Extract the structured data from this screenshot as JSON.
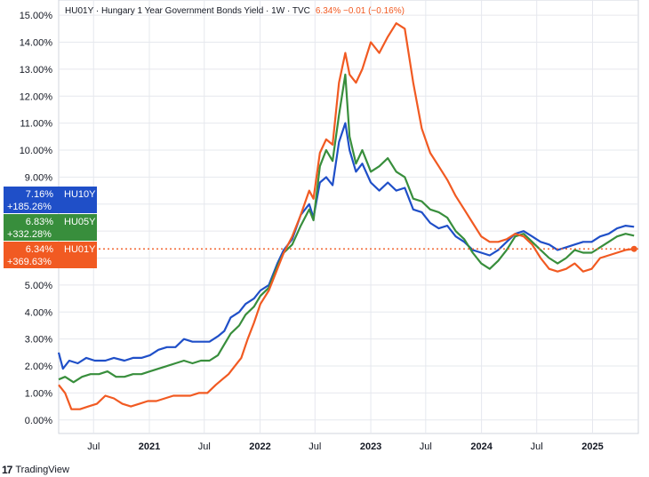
{
  "header": {
    "title": "HU01Y · Hungary 1 Year Government Bonds Yield · 1W · TVC",
    "values": "6.34%  −0.01 (−0.16%)"
  },
  "branding": {
    "glyph": "17",
    "label": "TradingView"
  },
  "colors": {
    "hu10y": "#1f4fc8",
    "hu05y": "#388e3c",
    "hu01y": "#f15a22"
  },
  "chart_data": {
    "type": "line",
    "ylim": [
      -0.5,
      15.3
    ],
    "ytick_labels": [
      "0.00%",
      "1.00%",
      "2.00%",
      "3.00%",
      "4.00%",
      "5.00%",
      "6.00%",
      "7.00%",
      "8.00%",
      "9.00%",
      "10.00%",
      "11.00%",
      "12.00%",
      "13.00%",
      "14.00%",
      "15.00%"
    ],
    "ytick_values": [
      0,
      1,
      2,
      3,
      4,
      5,
      6,
      7,
      8,
      9,
      10,
      11,
      12,
      13,
      14,
      15
    ],
    "xlim": [
      "2020-03-08",
      "2025-06-01"
    ],
    "xticks": [
      {
        "label": "Jul",
        "date": "2020-07-01",
        "year": false
      },
      {
        "label": "2021",
        "date": "2021-01-01",
        "year": true
      },
      {
        "label": "Jul",
        "date": "2021-07-01",
        "year": false
      },
      {
        "label": "2022",
        "date": "2022-01-01",
        "year": true
      },
      {
        "label": "Jul",
        "date": "2022-07-01",
        "year": false
      },
      {
        "label": "2023",
        "date": "2023-01-01",
        "year": true
      },
      {
        "label": "Jul",
        "date": "2023-07-01",
        "year": false
      },
      {
        "label": "2024",
        "date": "2024-01-01",
        "year": true
      },
      {
        "label": "Jul",
        "date": "2024-07-01",
        "year": false
      },
      {
        "label": "2025",
        "date": "2025-01-01",
        "year": true
      }
    ],
    "grid": true,
    "series": [
      {
        "name": "HU10Y",
        "color": "#1f4fc8",
        "last_value": "7.16%",
        "change": "+185.26%",
        "last": 7.16,
        "points": [
          [
            "2020-03-08",
            2.5
          ],
          [
            "2020-03-22",
            1.9
          ],
          [
            "2020-04-12",
            2.2
          ],
          [
            "2020-05-10",
            2.1
          ],
          [
            "2020-06-07",
            2.3
          ],
          [
            "2020-07-05",
            2.2
          ],
          [
            "2020-08-09",
            2.2
          ],
          [
            "2020-09-06",
            2.3
          ],
          [
            "2020-10-11",
            2.2
          ],
          [
            "2020-11-08",
            2.3
          ],
          [
            "2020-12-06",
            2.3
          ],
          [
            "2021-01-03",
            2.4
          ],
          [
            "2021-01-31",
            2.6
          ],
          [
            "2021-02-28",
            2.7
          ],
          [
            "2021-03-28",
            2.7
          ],
          [
            "2021-04-25",
            3.0
          ],
          [
            "2021-05-23",
            2.9
          ],
          [
            "2021-06-20",
            2.9
          ],
          [
            "2021-07-18",
            2.9
          ],
          [
            "2021-08-15",
            3.1
          ],
          [
            "2021-09-05",
            3.3
          ],
          [
            "2021-09-26",
            3.8
          ],
          [
            "2021-10-24",
            4.0
          ],
          [
            "2021-11-14",
            4.3
          ],
          [
            "2021-12-12",
            4.5
          ],
          [
            "2022-01-02",
            4.8
          ],
          [
            "2022-01-30",
            5.0
          ],
          [
            "2022-02-27",
            5.8
          ],
          [
            "2022-03-20",
            6.3
          ],
          [
            "2022-04-17",
            6.7
          ],
          [
            "2022-05-15",
            7.6
          ],
          [
            "2022-06-12",
            8.0
          ],
          [
            "2022-06-26",
            7.5
          ],
          [
            "2022-07-17",
            8.8
          ],
          [
            "2022-08-07",
            9.0
          ],
          [
            "2022-08-28",
            8.7
          ],
          [
            "2022-09-18",
            10.3
          ],
          [
            "2022-10-09",
            11.0
          ],
          [
            "2022-10-23",
            10.0
          ],
          [
            "2022-11-13",
            9.2
          ],
          [
            "2022-12-04",
            9.5
          ],
          [
            "2023-01-01",
            8.8
          ],
          [
            "2023-01-29",
            8.5
          ],
          [
            "2023-02-26",
            8.8
          ],
          [
            "2023-03-26",
            8.5
          ],
          [
            "2023-04-23",
            8.6
          ],
          [
            "2023-05-21",
            7.8
          ],
          [
            "2023-06-18",
            7.7
          ],
          [
            "2023-07-16",
            7.3
          ],
          [
            "2023-08-13",
            7.1
          ],
          [
            "2023-09-10",
            7.2
          ],
          [
            "2023-10-08",
            6.8
          ],
          [
            "2023-11-05",
            6.6
          ],
          [
            "2023-12-03",
            6.3
          ],
          [
            "2023-12-31",
            6.2
          ],
          [
            "2024-01-28",
            6.1
          ],
          [
            "2024-02-25",
            6.3
          ],
          [
            "2024-03-24",
            6.6
          ],
          [
            "2024-04-21",
            6.9
          ],
          [
            "2024-05-19",
            7.0
          ],
          [
            "2024-06-16",
            6.8
          ],
          [
            "2024-07-14",
            6.6
          ],
          [
            "2024-08-11",
            6.5
          ],
          [
            "2024-09-08",
            6.3
          ],
          [
            "2024-10-06",
            6.4
          ],
          [
            "2024-11-03",
            6.5
          ],
          [
            "2024-12-01",
            6.6
          ],
          [
            "2024-12-29",
            6.6
          ],
          [
            "2025-01-26",
            6.8
          ],
          [
            "2025-02-23",
            6.9
          ],
          [
            "2025-03-23",
            7.1
          ],
          [
            "2025-04-20",
            7.2
          ],
          [
            "2025-05-18",
            7.16
          ]
        ]
      },
      {
        "name": "HU05Y",
        "color": "#388e3c",
        "last_value": "6.83%",
        "change": "+332.28%",
        "last": 6.83,
        "points": [
          [
            "2020-03-08",
            1.5
          ],
          [
            "2020-03-29",
            1.6
          ],
          [
            "2020-04-26",
            1.4
          ],
          [
            "2020-05-24",
            1.6
          ],
          [
            "2020-06-21",
            1.7
          ],
          [
            "2020-07-19",
            1.7
          ],
          [
            "2020-08-16",
            1.8
          ],
          [
            "2020-09-13",
            1.6
          ],
          [
            "2020-10-11",
            1.6
          ],
          [
            "2020-11-08",
            1.7
          ],
          [
            "2020-12-06",
            1.7
          ],
          [
            "2021-01-03",
            1.8
          ],
          [
            "2021-01-31",
            1.9
          ],
          [
            "2021-02-28",
            2.0
          ],
          [
            "2021-03-28",
            2.1
          ],
          [
            "2021-04-25",
            2.2
          ],
          [
            "2021-05-23",
            2.1
          ],
          [
            "2021-06-20",
            2.2
          ],
          [
            "2021-07-18",
            2.2
          ],
          [
            "2021-08-15",
            2.4
          ],
          [
            "2021-09-05",
            2.8
          ],
          [
            "2021-09-26",
            3.2
          ],
          [
            "2021-10-24",
            3.5
          ],
          [
            "2021-11-14",
            3.9
          ],
          [
            "2021-12-12",
            4.2
          ],
          [
            "2022-01-02",
            4.6
          ],
          [
            "2022-01-30",
            4.9
          ],
          [
            "2022-02-27",
            5.7
          ],
          [
            "2022-03-20",
            6.2
          ],
          [
            "2022-04-17",
            6.5
          ],
          [
            "2022-05-15",
            7.2
          ],
          [
            "2022-06-12",
            7.8
          ],
          [
            "2022-06-26",
            7.4
          ],
          [
            "2022-07-17",
            9.4
          ],
          [
            "2022-08-07",
            10.0
          ],
          [
            "2022-08-28",
            9.6
          ],
          [
            "2022-09-18",
            11.3
          ],
          [
            "2022-10-09",
            12.8
          ],
          [
            "2022-10-23",
            10.5
          ],
          [
            "2022-11-13",
            9.5
          ],
          [
            "2022-12-04",
            10.0
          ],
          [
            "2023-01-01",
            9.2
          ],
          [
            "2023-01-29",
            9.4
          ],
          [
            "2023-02-26",
            9.7
          ],
          [
            "2023-03-26",
            9.2
          ],
          [
            "2023-04-23",
            9.0
          ],
          [
            "2023-05-21",
            8.2
          ],
          [
            "2023-06-18",
            8.1
          ],
          [
            "2023-07-16",
            7.8
          ],
          [
            "2023-08-13",
            7.7
          ],
          [
            "2023-09-10",
            7.5
          ],
          [
            "2023-10-08",
            7.0
          ],
          [
            "2023-11-05",
            6.7
          ],
          [
            "2023-12-03",
            6.2
          ],
          [
            "2023-12-31",
            5.8
          ],
          [
            "2024-01-28",
            5.6
          ],
          [
            "2024-02-25",
            5.9
          ],
          [
            "2024-03-24",
            6.3
          ],
          [
            "2024-04-21",
            6.8
          ],
          [
            "2024-05-19",
            6.9
          ],
          [
            "2024-06-16",
            6.6
          ],
          [
            "2024-07-14",
            6.3
          ],
          [
            "2024-08-11",
            6.0
          ],
          [
            "2024-09-08",
            5.8
          ],
          [
            "2024-10-06",
            6.0
          ],
          [
            "2024-11-03",
            6.3
          ],
          [
            "2024-12-01",
            6.2
          ],
          [
            "2024-12-29",
            6.2
          ],
          [
            "2025-01-26",
            6.4
          ],
          [
            "2025-02-23",
            6.6
          ],
          [
            "2025-03-23",
            6.8
          ],
          [
            "2025-04-20",
            6.9
          ],
          [
            "2025-05-18",
            6.83
          ]
        ]
      },
      {
        "name": "HU01Y",
        "color": "#f15a22",
        "last_value": "6.34%",
        "change": "+369.63%",
        "last": 6.34,
        "points": [
          [
            "2020-03-08",
            1.3
          ],
          [
            "2020-03-29",
            1.0
          ],
          [
            "2020-04-19",
            0.4
          ],
          [
            "2020-05-17",
            0.4
          ],
          [
            "2020-06-14",
            0.5
          ],
          [
            "2020-07-12",
            0.6
          ],
          [
            "2020-08-09",
            0.9
          ],
          [
            "2020-09-06",
            0.8
          ],
          [
            "2020-10-04",
            0.6
          ],
          [
            "2020-11-01",
            0.5
          ],
          [
            "2020-11-29",
            0.6
          ],
          [
            "2020-12-27",
            0.7
          ],
          [
            "2021-01-24",
            0.7
          ],
          [
            "2021-02-21",
            0.8
          ],
          [
            "2021-03-21",
            0.9
          ],
          [
            "2021-04-18",
            0.9
          ],
          [
            "2021-05-16",
            0.9
          ],
          [
            "2021-06-13",
            1.0
          ],
          [
            "2021-07-11",
            1.0
          ],
          [
            "2021-08-08",
            1.3
          ],
          [
            "2021-08-29",
            1.5
          ],
          [
            "2021-09-19",
            1.7
          ],
          [
            "2021-10-10",
            2.0
          ],
          [
            "2021-10-31",
            2.3
          ],
          [
            "2021-11-21",
            3.0
          ],
          [
            "2021-12-12",
            3.6
          ],
          [
            "2022-01-02",
            4.3
          ],
          [
            "2022-01-30",
            4.8
          ],
          [
            "2022-02-27",
            5.6
          ],
          [
            "2022-03-20",
            6.2
          ],
          [
            "2022-04-17",
            6.8
          ],
          [
            "2022-05-15",
            7.6
          ],
          [
            "2022-06-12",
            8.5
          ],
          [
            "2022-06-26",
            8.2
          ],
          [
            "2022-07-17",
            9.9
          ],
          [
            "2022-08-07",
            10.4
          ],
          [
            "2022-08-28",
            10.2
          ],
          [
            "2022-09-18",
            12.5
          ],
          [
            "2022-10-09",
            13.6
          ],
          [
            "2022-10-23",
            12.8
          ],
          [
            "2022-11-13",
            12.5
          ],
          [
            "2022-12-04",
            13.0
          ],
          [
            "2023-01-01",
            14.0
          ],
          [
            "2023-01-29",
            13.6
          ],
          [
            "2023-02-26",
            14.2
          ],
          [
            "2023-03-26",
            14.7
          ],
          [
            "2023-04-23",
            14.5
          ],
          [
            "2023-05-21",
            12.5
          ],
          [
            "2023-06-18",
            10.8
          ],
          [
            "2023-07-16",
            9.9
          ],
          [
            "2023-08-13",
            9.4
          ],
          [
            "2023-09-10",
            8.9
          ],
          [
            "2023-10-08",
            8.3
          ],
          [
            "2023-11-05",
            7.8
          ],
          [
            "2023-12-03",
            7.3
          ],
          [
            "2023-12-31",
            6.8
          ],
          [
            "2024-01-28",
            6.6
          ],
          [
            "2024-02-25",
            6.6
          ],
          [
            "2024-03-24",
            6.7
          ],
          [
            "2024-04-21",
            6.9
          ],
          [
            "2024-05-19",
            6.8
          ],
          [
            "2024-06-16",
            6.5
          ],
          [
            "2024-07-14",
            6.0
          ],
          [
            "2024-08-11",
            5.6
          ],
          [
            "2024-09-08",
            5.5
          ],
          [
            "2024-10-06",
            5.6
          ],
          [
            "2024-11-03",
            5.8
          ],
          [
            "2024-12-01",
            5.5
          ],
          [
            "2024-12-29",
            5.6
          ],
          [
            "2025-01-26",
            6.0
          ],
          [
            "2025-02-23",
            6.1
          ],
          [
            "2025-03-23",
            6.2
          ],
          [
            "2025-04-20",
            6.3
          ],
          [
            "2025-05-18",
            6.34
          ]
        ]
      }
    ]
  }
}
